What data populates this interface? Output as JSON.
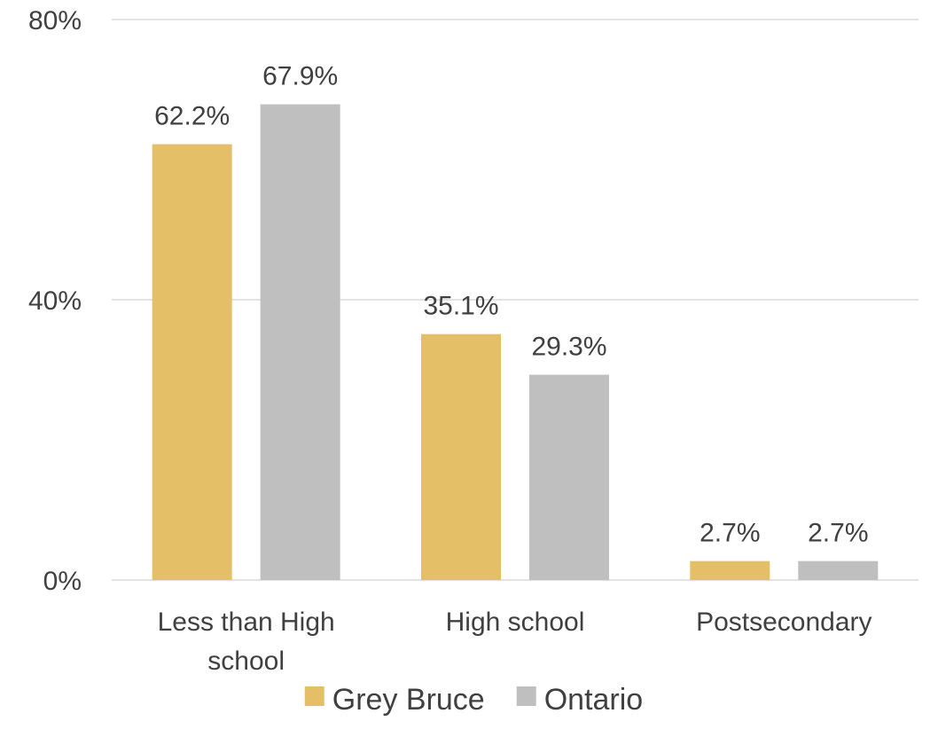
{
  "chart_data": {
    "type": "bar",
    "title": "",
    "xlabel": "",
    "ylabel": "",
    "categories": [
      "Less than High school",
      "High school",
      "Postsecondary"
    ],
    "category_lines": [
      [
        "Less than High",
        "school"
      ],
      [
        "High school"
      ],
      [
        "Postsecondary"
      ]
    ],
    "series": [
      {
        "name": "Grey Bruce",
        "values": [
          62.2,
          35.1,
          2.7
        ],
        "labels": [
          "62.2%",
          "35.1%",
          "2.7%"
        ],
        "color": "#E4BF68"
      },
      {
        "name": "Ontario",
        "values": [
          67.9,
          29.3,
          2.7
        ],
        "labels": [
          "67.9%",
          "29.3%",
          "2.7%"
        ],
        "color": "#BFBFBF"
      }
    ],
    "ylim": [
      0,
      80
    ],
    "yticks": [
      0,
      40,
      80
    ],
    "ytick_labels": [
      "0%",
      "40%",
      "80%"
    ],
    "grid": true,
    "gridline_color": "#D9D9D9",
    "legend_position": "bottom"
  }
}
